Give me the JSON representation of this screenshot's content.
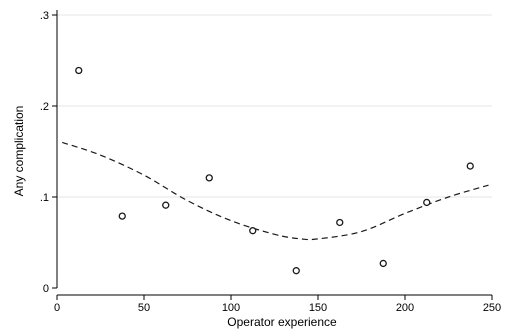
{
  "chart_data": {
    "type": "scatter",
    "xlabel": "Operator experience",
    "ylabel": "Any complication",
    "xlim": [
      0,
      250
    ],
    "ylim": [
      0,
      0.3
    ],
    "xticks": [
      {
        "value": 0,
        "label": "0"
      },
      {
        "value": 50,
        "label": "50"
      },
      {
        "value": 100,
        "label": "100"
      },
      {
        "value": 150,
        "label": "150"
      },
      {
        "value": 200,
        "label": "200"
      },
      {
        "value": 250,
        "label": "250"
      }
    ],
    "yticks": [
      {
        "value": 0,
        "label": "0"
      },
      {
        "value": 0.1,
        "label": ".1"
      },
      {
        "value": 0.2,
        "label": ".2"
      },
      {
        "value": 0.3,
        "label": ".3"
      }
    ],
    "grid": "horizontal",
    "legend": "none",
    "series": [
      {
        "kind": "scatter",
        "marker": "hollow-circle",
        "color": "#1a1a1a",
        "x": [
          12.5,
          37.5,
          62.5,
          87.5,
          112.5,
          137.5,
          162.5,
          187.5,
          212.5,
          237.5
        ],
        "y": [
          0.239,
          0.079,
          0.091,
          0.121,
          0.063,
          0.019,
          0.072,
          0.027,
          0.094,
          0.134
        ]
      },
      {
        "kind": "line",
        "style": "dashed",
        "color": "#1a1a1a",
        "x": [
          3,
          25,
          50,
          75,
          100,
          125,
          140,
          150,
          175,
          200,
          225,
          248
        ],
        "y": [
          0.16,
          0.146,
          0.124,
          0.096,
          0.074,
          0.059,
          0.054,
          0.054,
          0.062,
          0.082,
          0.1,
          0.113
        ]
      }
    ]
  }
}
